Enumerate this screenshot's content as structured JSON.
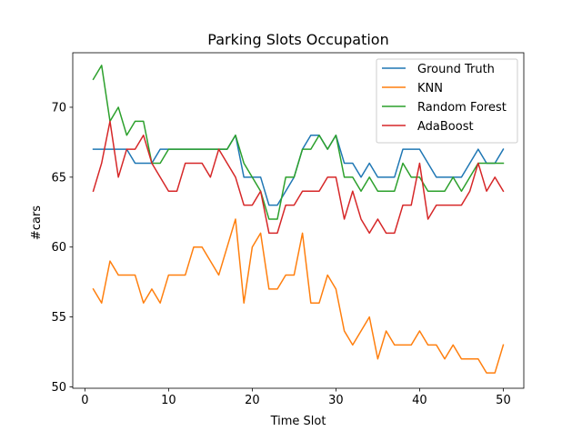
{
  "chart_data": {
    "type": "line",
    "title": "Parking Slots Occupation",
    "xlabel": "Time Slot",
    "ylabel": "#cars",
    "xlim": [
      -1.45,
      52.45
    ],
    "ylim": [
      49.9,
      73.9
    ],
    "xticks": [
      0,
      10,
      20,
      30,
      40,
      50
    ],
    "yticks": [
      50,
      55,
      60,
      65,
      70
    ],
    "grid": false,
    "legend_position": "top-right",
    "x": [
      1,
      2,
      3,
      4,
      5,
      6,
      7,
      8,
      9,
      10,
      11,
      12,
      13,
      14,
      15,
      16,
      17,
      18,
      19,
      20,
      21,
      22,
      23,
      24,
      25,
      26,
      27,
      28,
      29,
      30,
      31,
      32,
      33,
      34,
      35,
      36,
      37,
      38,
      39,
      40,
      41,
      42,
      43,
      44,
      45,
      46,
      47,
      48,
      49,
      50
    ],
    "series": [
      {
        "name": "Ground Truth",
        "color": "#1f77b4",
        "values": [
          67,
          67,
          67,
          67,
          67,
          66,
          66,
          66,
          67,
          67,
          67,
          67,
          67,
          67,
          67,
          67,
          67,
          68,
          65,
          65,
          65,
          63,
          63,
          64,
          65,
          67,
          68,
          68,
          67,
          68,
          66,
          66,
          65,
          66,
          65,
          65,
          65,
          67,
          67,
          67,
          66,
          65,
          65,
          65,
          65,
          66,
          67,
          66,
          66,
          67
        ]
      },
      {
        "name": "KNN",
        "color": "#ff7f0e",
        "values": [
          57,
          56,
          59,
          58,
          58,
          58,
          56,
          57,
          56,
          58,
          58,
          58,
          60,
          60,
          59,
          58,
          60,
          62,
          56,
          60,
          61,
          57,
          57,
          58,
          58,
          61,
          56,
          56,
          58,
          57,
          54,
          53,
          54,
          55,
          52,
          54,
          53,
          53,
          53,
          54,
          53,
          53,
          52,
          53,
          52,
          52,
          52,
          51,
          51,
          53
        ]
      },
      {
        "name": "Random Forest",
        "color": "#2ca02c",
        "values": [
          72,
          73,
          69,
          70,
          68,
          69,
          69,
          66,
          66,
          67,
          67,
          67,
          67,
          67,
          67,
          67,
          67,
          68,
          66,
          65,
          64,
          62,
          62,
          65,
          65,
          67,
          67,
          68,
          67,
          68,
          65,
          65,
          64,
          65,
          64,
          64,
          64,
          66,
          65,
          65,
          64,
          64,
          64,
          65,
          64,
          65,
          66,
          66,
          66,
          66
        ]
      },
      {
        "name": "AdaBoost",
        "color": "#d62728",
        "values": [
          64,
          66,
          69,
          65,
          67,
          67,
          68,
          66,
          65,
          64,
          64,
          66,
          66,
          66,
          65,
          67,
          66,
          65,
          63,
          63,
          64,
          61,
          61,
          63,
          63,
          64,
          64,
          64,
          65,
          65,
          62,
          64,
          62,
          61,
          62,
          61,
          61,
          63,
          63,
          66,
          62,
          63,
          63,
          63,
          63,
          64,
          66,
          64,
          65,
          64
        ]
      }
    ]
  }
}
